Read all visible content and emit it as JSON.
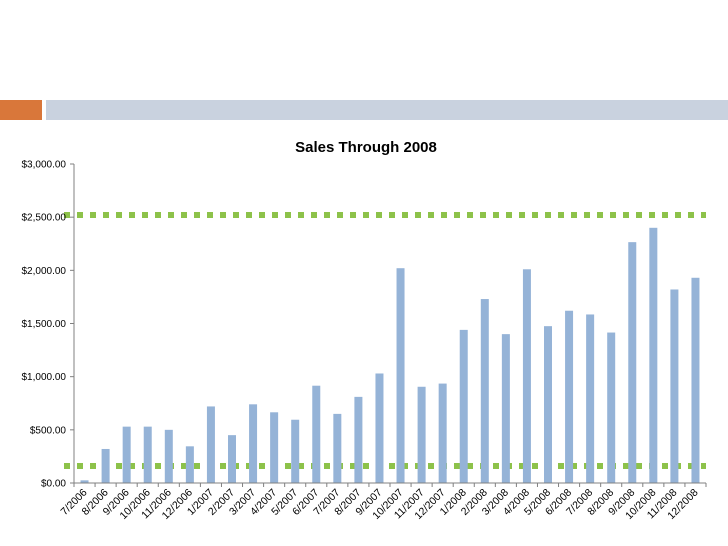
{
  "chart_data": {
    "type": "bar",
    "title": "Sales Through 2008",
    "xlabel": "",
    "ylabel": "",
    "ylim": [
      0,
      3000
    ],
    "yticks": [
      "$0.00",
      "$500.00",
      "$1,000.00",
      "$1,500.00",
      "$2,000.00",
      "$2,500.00",
      "$3,000.00"
    ],
    "grid": false,
    "legend": "none",
    "categories": [
      "7/2006",
      "8/2006",
      "9/2006",
      "10/2006",
      "11/2006",
      "12/2006",
      "1/2007",
      "2/2007",
      "3/2007",
      "4/2007",
      "5/2007",
      "6/2007",
      "7/2007",
      "8/2007",
      "9/2007",
      "10/2007",
      "11/2007",
      "12/2007",
      "1/2008",
      "2/2008",
      "3/2008",
      "4/2008",
      "5/2008",
      "6/2008",
      "7/2008",
      "8/2008",
      "9/2008",
      "10/2008",
      "11/2008",
      "12/2008"
    ],
    "values": [
      25,
      320,
      530,
      530,
      500,
      345,
      720,
      450,
      740,
      665,
      595,
      915,
      650,
      810,
      1030,
      2020,
      905,
      935,
      1440,
      1730,
      1400,
      2010,
      1475,
      1620,
      1585,
      1415,
      2265,
      2400,
      1820,
      1930
    ],
    "reference_lines": [
      2520,
      160
    ],
    "colors": {
      "bar": "#95b3d7",
      "reference_line": "#8dc24a",
      "axis": "#808080",
      "accent": "#d9773a",
      "band": "#c9d2df"
    }
  }
}
